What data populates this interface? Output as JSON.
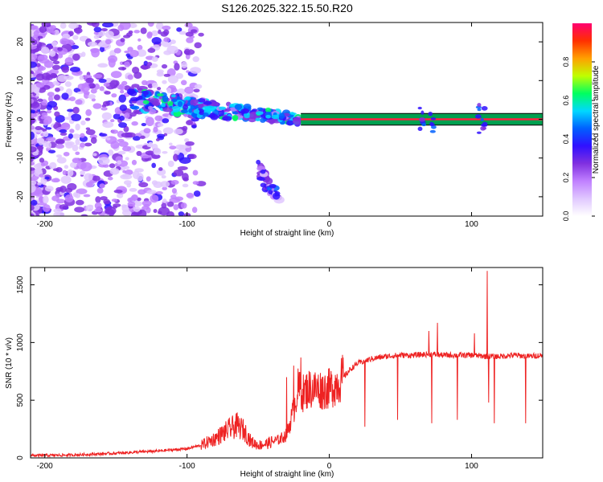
{
  "title": "S126.2025.322.15.50.R20",
  "chart_data": [
    {
      "type": "heatmap",
      "name": "spectrogram",
      "xlabel": "Height of straight line (km)",
      "ylabel": "Frequency (Hz)",
      "xlim": [
        -210,
        150
      ],
      "ylim": [
        -25,
        25
      ],
      "xticks": [
        -200,
        -100,
        0,
        100
      ],
      "yticks": [
        20,
        10,
        0,
        -10,
        -20
      ],
      "colorbar": {
        "label": "Normalized spectral amplitude",
        "range": [
          0,
          1
        ],
        "ticks": [
          0.0,
          0.2,
          0.4,
          0.6,
          0.8
        ],
        "colors": [
          "#ffffff",
          "#e0c8ff",
          "#c080ff",
          "#8030e0",
          "#3010ff",
          "#0060ff",
          "#00d8ff",
          "#00ff60",
          "#c0ff00",
          "#ffa000",
          "#ff3000",
          "#ff0070"
        ]
      },
      "features": [
        {
          "name": "broadband noise",
          "x": [
            -210,
            -90
          ],
          "y": [
            -25,
            25
          ],
          "amplitude": 0.2
        },
        {
          "name": "decaying signal",
          "x": [
            -140,
            -20
          ],
          "y": [
            5,
            0
          ],
          "amplitude": 0.3
        },
        {
          "name": "secondary branch",
          "x": [
            -50,
            -35
          ],
          "y": [
            -13,
            -21
          ],
          "amplitude": 0.2
        },
        {
          "name": "carrier line",
          "x": [
            -20,
            150
          ],
          "y": [
            0,
            0
          ],
          "amplitude": 0.95
        }
      ]
    },
    {
      "type": "line",
      "name": "snr",
      "xlabel": "Height of straight line (km)",
      "ylabel": "SNR (10 * v/v)",
      "xlim": [
        -210,
        150
      ],
      "ylim": [
        0,
        1650
      ],
      "xticks": [
        -200,
        -100,
        0,
        100
      ],
      "yticks": [
        0,
        500,
        1000,
        1500
      ],
      "series": [
        {
          "name": "SNR",
          "color": "#ee2222",
          "x": [
            -210,
            -180,
            -150,
            -120,
            -100,
            -90,
            -80,
            -70,
            -65,
            -60,
            -55,
            -50,
            -45,
            -40,
            -35,
            -30,
            -25,
            -22,
            -20,
            -18,
            -15,
            -10,
            -5,
            0,
            5,
            10,
            15,
            20,
            30,
            40,
            50,
            60,
            70,
            80,
            90,
            100,
            110,
            120,
            130,
            140,
            150
          ],
          "y": [
            20,
            25,
            40,
            60,
            80,
            110,
            170,
            250,
            280,
            240,
            140,
            110,
            120,
            140,
            160,
            200,
            420,
            600,
            580,
            560,
            600,
            600,
            590,
            600,
            640,
            700,
            770,
            820,
            860,
            880,
            890,
            890,
            900,
            890,
            890,
            890,
            880,
            880,
            890,
            880,
            890
          ]
        }
      ],
      "spikes": [
        {
          "x": -30,
          "y": 700
        },
        {
          "x": -25,
          "y": 800
        },
        {
          "x": -20,
          "y": 870
        },
        {
          "x": 25,
          "y": 270
        },
        {
          "x": 48,
          "y": 330
        },
        {
          "x": 70,
          "y": 1100
        },
        {
          "x": 72,
          "y": 300
        },
        {
          "x": 76,
          "y": 1170
        },
        {
          "x": 90,
          "y": 330
        },
        {
          "x": 102,
          "y": 1080
        },
        {
          "x": 111,
          "y": 1620
        },
        {
          "x": 112,
          "y": 480
        },
        {
          "x": 116,
          "y": 300
        },
        {
          "x": 138,
          "y": 300
        }
      ]
    }
  ]
}
